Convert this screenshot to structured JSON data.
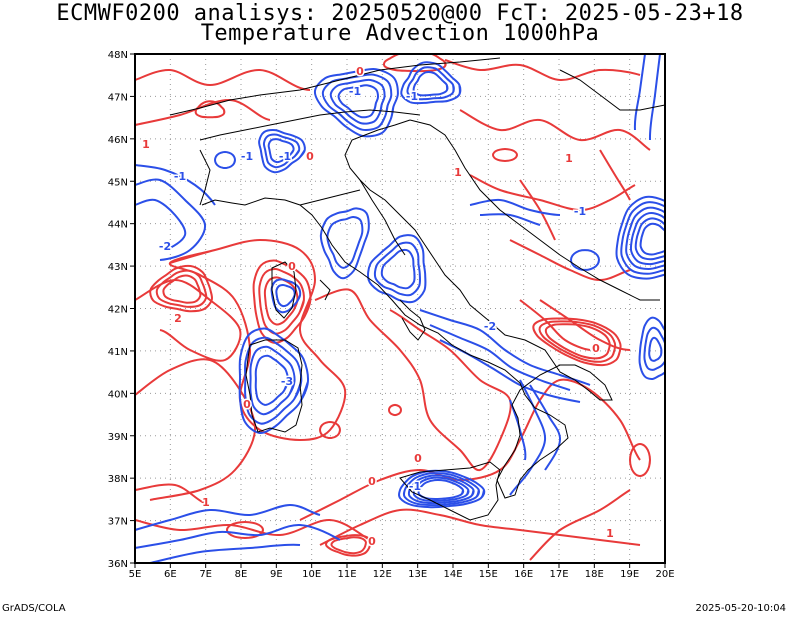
{
  "title": {
    "line1": "ECMWF0200 analisys: 20250520@00 FcT: 2025-05-23+18",
    "line2": "Temperature Advection 1000hPa"
  },
  "map": {
    "lon_range": [
      5,
      20
    ],
    "lat_range": [
      36,
      48
    ],
    "x_ticks": [
      "5E",
      "6E",
      "7E",
      "8E",
      "9E",
      "10E",
      "11E",
      "12E",
      "13E",
      "14E",
      "15E",
      "16E",
      "17E",
      "18E",
      "19E",
      "20E"
    ],
    "y_ticks": [
      "36N",
      "37N",
      "38N",
      "39N",
      "40N",
      "41N",
      "42N",
      "43N",
      "44N",
      "45N",
      "46N",
      "47N",
      "48N"
    ],
    "grid": "dotted",
    "colors": {
      "warm_advection": "#e83a3a",
      "cold_advection": "#2b4fe8",
      "coastline": "#000000",
      "grid": "#9a9a9a"
    },
    "contour_labels": [
      {
        "text": "-2",
        "color": "cold"
      },
      {
        "text": "-1",
        "color": "cold"
      },
      {
        "text": "-1",
        "color": "cold"
      },
      {
        "text": "-1",
        "color": "cold"
      },
      {
        "text": "-1",
        "color": "cold"
      },
      {
        "text": "-1",
        "color": "cold"
      },
      {
        "text": "-1",
        "color": "cold"
      },
      {
        "text": "-1",
        "color": "cold"
      },
      {
        "text": "-3",
        "color": "cold"
      },
      {
        "text": "-2",
        "color": "cold"
      },
      {
        "text": "0",
        "color": "warm"
      },
      {
        "text": "0",
        "color": "warm"
      },
      {
        "text": "0",
        "color": "warm"
      },
      {
        "text": "0",
        "color": "warm"
      },
      {
        "text": "0",
        "color": "warm"
      },
      {
        "text": "0",
        "color": "warm"
      },
      {
        "text": "0",
        "color": "warm"
      },
      {
        "text": "0",
        "color": "warm"
      },
      {
        "text": "1",
        "color": "warm"
      },
      {
        "text": "1",
        "color": "warm"
      },
      {
        "text": "1",
        "color": "warm"
      },
      {
        "text": "1",
        "color": "warm"
      },
      {
        "text": "2",
        "color": "warm"
      },
      {
        "text": "1",
        "color": "warm"
      }
    ]
  },
  "footer": {
    "left": "GrADS/COLA",
    "right": "2025-05-20-10:04"
  }
}
